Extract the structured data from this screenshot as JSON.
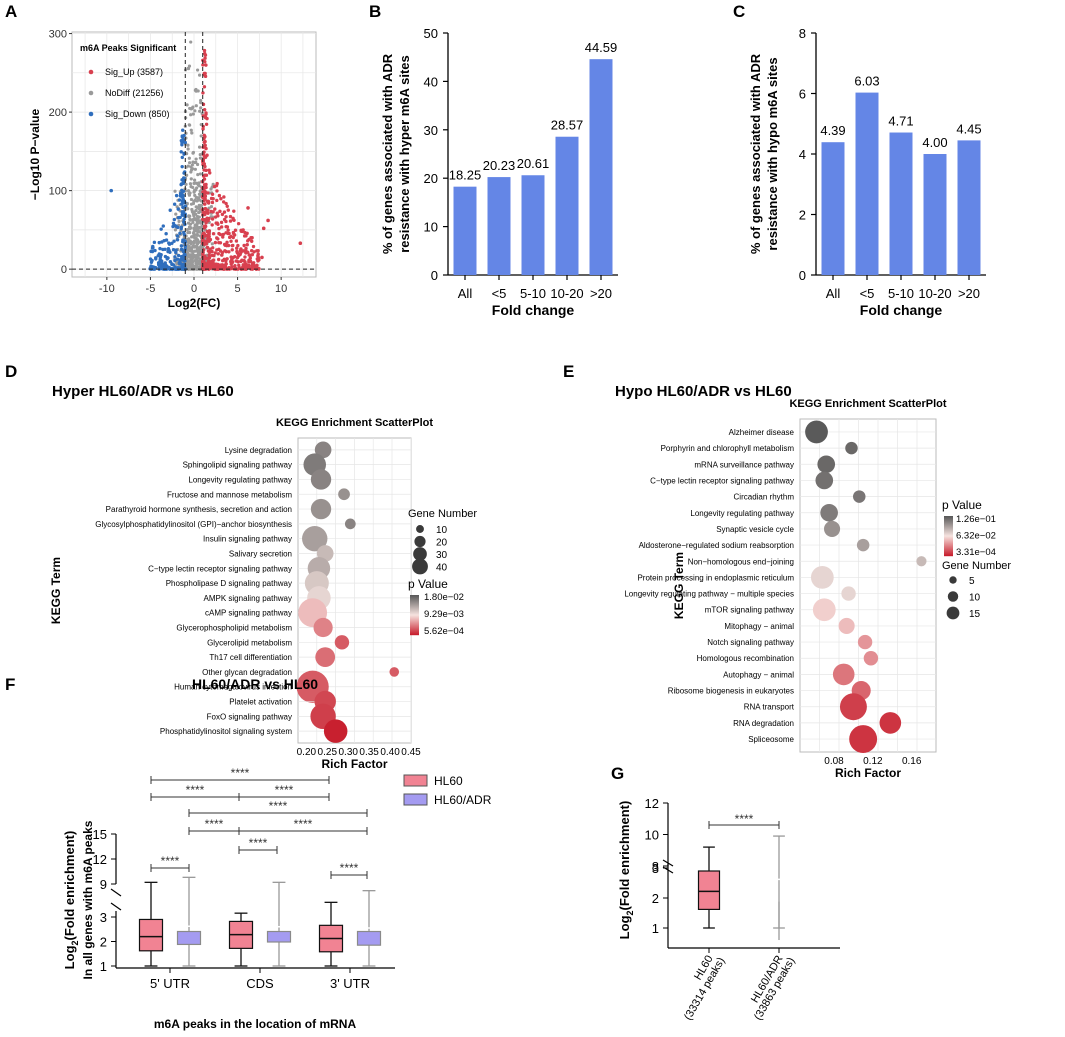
{
  "colors": {
    "bar": "#6486e6",
    "sig_up": "#d8404f",
    "nodiff": "#9a9a9a",
    "sig_down": "#2f6ebd",
    "hl60": "#f18393",
    "hl60adr": "#a49bf1",
    "grid": "#e6e6e6"
  },
  "chart_data": [
    {
      "panel": "A",
      "letter": "A",
      "type": "scatter",
      "title": "",
      "legend_title": "m6A Peaks Significant",
      "legend": [
        {
          "name": "Sig_Up (3587)",
          "key": "sig_up"
        },
        {
          "name": "NoDiff (21256)",
          "key": "nodiff"
        },
        {
          "name": "Sig_Down (850)",
          "key": "sig_down"
        }
      ],
      "xlabel": "Log2(FC)",
      "ylabel": "−Log10 P−value",
      "xlim": [
        -14,
        14
      ],
      "ylim": [
        -10,
        302
      ],
      "xticks": [
        -10,
        -5,
        0,
        5,
        10
      ],
      "yticks": [
        0,
        100,
        200,
        300
      ],
      "vlines": [
        -1,
        1
      ],
      "hline": 0
    },
    {
      "panel": "B",
      "letter": "B",
      "type": "bar",
      "categories": [
        "All",
        "<5",
        "5-10",
        "10-20",
        ">20"
      ],
      "values": [
        18.25,
        20.23,
        20.61,
        28.57,
        44.59
      ],
      "labels": [
        "18.25",
        "20.23",
        "20.61",
        "28.57",
        "44.59"
      ],
      "xlabel": "Fold change",
      "ylabel_lines": [
        "% of genes associated with ADR",
        "resistance with hyper m6A sites"
      ],
      "ylim": [
        0,
        50
      ],
      "yticks": [
        0,
        10,
        20,
        30,
        40,
        50
      ]
    },
    {
      "panel": "C",
      "letter": "C",
      "type": "bar",
      "categories": [
        "All",
        "<5",
        "5-10",
        "10-20",
        ">20"
      ],
      "values": [
        4.39,
        6.03,
        4.71,
        4.0,
        4.45
      ],
      "labels": [
        "4.39",
        "6.03",
        "4.71",
        "4.00",
        "4.45"
      ],
      "xlabel": "Fold change",
      "ylabel_lines": [
        "% of genes associated with ADR",
        "resistance with hypo m6A sites"
      ],
      "ylim": [
        0,
        8
      ],
      "yticks": [
        0,
        2,
        4,
        6,
        8
      ]
    },
    {
      "panel": "D",
      "letter": "D",
      "type": "scatter",
      "heading": "Hyper HL60/ADR vs HL60",
      "title": "KEGG Enrichment ScatterPlot",
      "xlabel": "Rich Factor",
      "ylabel": "KEGG Term",
      "xlim": [
        0.18,
        0.45
      ],
      "xticks": [
        0.2,
        0.25,
        0.3,
        0.35,
        0.4,
        0.45
      ],
      "xtick_labels": [
        "0.20",
        "0.25",
        "0.30",
        "0.35",
        "0.40",
        "0.45"
      ],
      "terms": [
        "Lysine degradation",
        "Sphingolipid signaling pathway",
        "Longevity regulating pathway",
        "Fructose and mannose metabolism",
        "Parathyroid hormone synthesis, secretion and action",
        "Glycosylphosphatidylinositol (GPI)−anchor biosynthesis",
        "Insulin signaling pathway",
        "Salivary secretion",
        "C−type lectin receptor signaling pathway",
        "Phospholipase D signaling pathway",
        "AMPK signaling pathway",
        "cAMP signaling pathway",
        "Glycerophospholipid metabolism",
        "Glycerolipid metabolism",
        "Th17 cell differentiation",
        "Other glycan degradation",
        "Human cytomegalovirus infection",
        "Platelet activation",
        "FoxO signaling pathway",
        "Phosphatidylinositol signaling system"
      ],
      "rich": [
        0.24,
        0.22,
        0.235,
        0.29,
        0.235,
        0.305,
        0.22,
        0.245,
        0.23,
        0.225,
        0.23,
        0.215,
        0.24,
        0.285,
        0.245,
        0.41,
        0.215,
        0.245,
        0.24,
        0.27
      ],
      "genes": [
        12,
        22,
        18,
        6,
        18,
        5,
        28,
        12,
        22,
        25,
        24,
        36,
        16,
        9,
        17,
        4,
        45,
        20,
        28,
        24
      ],
      "pval_pos": [
        0.15,
        0.12,
        0.15,
        0.2,
        0.2,
        0.15,
        0.25,
        0.35,
        0.3,
        0.4,
        0.45,
        0.6,
        0.75,
        0.85,
        0.8,
        0.85,
        0.85,
        0.9,
        0.92,
        1.0
      ],
      "size_legend_title": "Gene Number",
      "size_legend": [
        10,
        20,
        30,
        40
      ],
      "color_legend_title": "p Value",
      "color_legend": [
        "1.80e−02",
        "9.29e−03",
        "5.62e−04"
      ]
    },
    {
      "panel": "E",
      "letter": "E",
      "type": "scatter",
      "heading": "Hypo HL60/ADR vs HL60",
      "title": "KEGG Enrichment ScatterPlot",
      "xlabel": "Rich Factor",
      "ylabel": "KEGG Term",
      "xlim": [
        0.045,
        0.185
      ],
      "xticks": [
        0.08,
        0.12,
        0.16
      ],
      "xtick_labels": [
        "0.08",
        "0.12",
        "0.16"
      ],
      "terms": [
        "Alzheimer disease",
        "Porphyrin and chlorophyll metabolism",
        "mRNA surveillance pathway",
        "C−type lectin receptor signaling pathway",
        "Circadian rhythm",
        "Longevity regulating pathway",
        "Synaptic vesicle cycle",
        "Aldosterone−regulated sodium reabsorption",
        "Non−homologous end−joining",
        "Protein processing in endoplasmic reticulum",
        "Longevity regulating pathway − multiple species",
        "mTOR signaling pathway",
        "Mitophagy − animal",
        "Notch signaling pathway",
        "Homologous recombination",
        "Autophagy − animal",
        "Ribosome biogenesis in eukaryotes",
        "RNA transport",
        "RNA degradation",
        "Spliceosome"
      ],
      "rich": [
        0.062,
        0.098,
        0.072,
        0.07,
        0.106,
        0.075,
        0.078,
        0.11,
        0.17,
        0.068,
        0.095,
        0.07,
        0.093,
        0.112,
        0.118,
        0.09,
        0.108,
        0.1,
        0.138,
        0.11
      ],
      "genes": [
        10,
        3,
        6,
        6,
        3,
        6,
        5,
        3,
        2,
        10,
        4,
        10,
        5,
        4,
        4,
        9,
        7,
        14,
        9,
        15
      ],
      "pval_pos": [
        0.0,
        0.05,
        0.05,
        0.08,
        0.1,
        0.12,
        0.2,
        0.25,
        0.35,
        0.45,
        0.45,
        0.55,
        0.6,
        0.7,
        0.72,
        0.78,
        0.82,
        0.92,
        0.95,
        0.95
      ],
      "size_legend_title": "Gene Number",
      "size_legend": [
        5,
        10,
        15
      ],
      "color_legend_title": "p Value",
      "color_legend": [
        "1.26e−01",
        "6.32e−02",
        "3.31e−04"
      ]
    },
    {
      "panel": "F",
      "letter": "F",
      "type": "boxplot",
      "title": "HL60/ADR vs HL60",
      "categories": [
        "5' UTR",
        "CDS",
        "3' UTR"
      ],
      "series": [
        "HL60",
        "HL60/ADR"
      ],
      "boxes": [
        {
          "cat": 0,
          "s": 0,
          "min": 1.0,
          "q1": 1.62,
          "med": 2.2,
          "q3": 2.9,
          "max": 9.2
        },
        {
          "cat": 0,
          "s": 1,
          "min": 1.0,
          "q1": 1.88,
          "med": 2.62,
          "q3": 3.3,
          "max": 9.8
        },
        {
          "cat": 1,
          "s": 0,
          "min": 1.0,
          "q1": 1.72,
          "med": 2.28,
          "q3": 2.82,
          "max": 5.5
        },
        {
          "cat": 1,
          "s": 1,
          "min": 1.0,
          "q1": 1.98,
          "med": 2.6,
          "q3": 3.3,
          "max": 9.2
        },
        {
          "cat": 2,
          "s": 0,
          "min": 1.0,
          "q1": 1.58,
          "med": 2.12,
          "q3": 2.66,
          "max": 6.8
        },
        {
          "cat": 2,
          "s": 1,
          "min": 1.0,
          "q1": 1.85,
          "med": 2.55,
          "q3": 3.3,
          "max": 8.2
        }
      ],
      "xlabel": "m6A peaks in the location of mRNA",
      "ylabel_main": "Log",
      "ylabel_sub": "2",
      "ylabel_rest": "(Fold enrichment)",
      "ylabel2": "In all genes with m6A peaks",
      "yticks_low": [
        1,
        2,
        3
      ],
      "yticks_high": [
        9,
        12,
        15
      ],
      "significance": "****"
    },
    {
      "panel": "G",
      "letter": "G",
      "type": "boxplot",
      "categories": [
        "HL60",
        "HL60/ADR"
      ],
      "category_sub": [
        "(33314 peaks)",
        "(33863 peaks)"
      ],
      "boxes": [
        {
          "cat": 0,
          "s": 0,
          "min": 1.0,
          "q1": 1.62,
          "med": 2.22,
          "q3": 2.9,
          "max": 9.2
        },
        {
          "cat": 1,
          "s": 1,
          "min": 1.0,
          "q1": 1.88,
          "med": 2.62,
          "q3": 3.3,
          "max": 9.9
        }
      ],
      "ylabel_main": "Log",
      "ylabel_sub": "2",
      "ylabel_rest": "(Fold enrichment)",
      "yticks_low": [
        1,
        2,
        3
      ],
      "yticks_high": [
        8,
        10,
        12
      ],
      "significance": "****"
    }
  ]
}
